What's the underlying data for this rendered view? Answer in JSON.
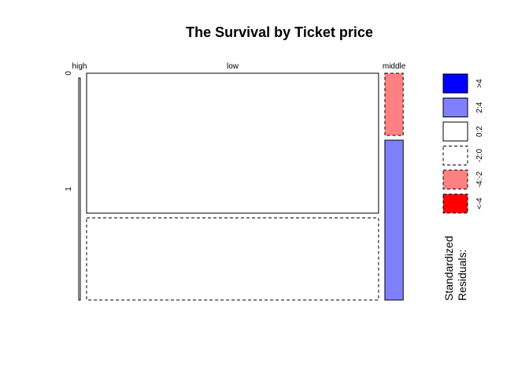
{
  "chart_data": {
    "type": "mosaic",
    "title": "The Survival by Ticket price",
    "column_labels": [
      "high",
      "low",
      "middle"
    ],
    "row_labels": [
      "0",
      "1"
    ],
    "column_widths": [
      0.005,
      0.925,
      0.058
    ],
    "cells": [
      {
        "column": "high",
        "row": "0",
        "height_fraction": 0.0,
        "residual_class": "-2:0"
      },
      {
        "column": "high",
        "row": "1",
        "height_fraction": 1.0,
        "residual_class": "0:2"
      },
      {
        "column": "low",
        "row": "0",
        "height_fraction": 0.63,
        "residual_class": "0:2"
      },
      {
        "column": "low",
        "row": "1",
        "height_fraction": 0.37,
        "residual_class": "-2:0"
      },
      {
        "column": "middle",
        "row": "0",
        "height_fraction": 0.28,
        "residual_class": "-4:-2"
      },
      {
        "column": "middle",
        "row": "1",
        "height_fraction": 0.72,
        "residual_class": "2:4"
      }
    ],
    "legend": {
      "title_lines": [
        "Standardized",
        "Residuals:"
      ],
      "entries": [
        {
          "label": ">4",
          "fill": "#0000FF",
          "dashed": false
        },
        {
          "label": "2:4",
          "fill": "#8080FF",
          "dashed": false
        },
        {
          "label": "0:2",
          "fill": "#FFFFFF",
          "dashed": false
        },
        {
          "label": "-2:0",
          "fill": "#FFFFFF",
          "dashed": true
        },
        {
          "label": "-4:-2",
          "fill": "#FF8080",
          "dashed": true
        },
        {
          "label": "<-4",
          "fill": "#FF0000",
          "dashed": true
        }
      ]
    }
  }
}
